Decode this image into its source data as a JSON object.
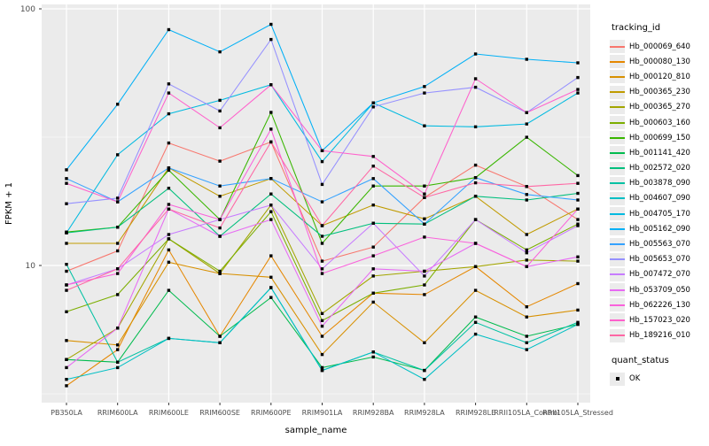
{
  "figure": {
    "background": "#FFFFFF",
    "panel_background": "#EBEBEB",
    "grid_color": "#FFFFFF",
    "axis_text_color": "#4D4D4D",
    "axis_title_color": "#000000",
    "marker_color": "#000000"
  },
  "axes": {
    "x_title": "sample_name",
    "y_title": "FPKM + 1",
    "y_ticks": [
      {
        "label": "100",
        "value": 100
      },
      {
        "label": "10",
        "value": 10
      }
    ]
  },
  "legend": {
    "tracking_title": "tracking_id",
    "quant_title": "quant_status",
    "quant_items": [
      {
        "label": "OK"
      }
    ]
  },
  "chart_data": {
    "type": "line",
    "title": "",
    "xlabel": "sample_name",
    "ylabel": "FPKM + 1",
    "y_scale": "log10",
    "ylim": [
      2.9,
      104
    ],
    "y_major_gridlines": [
      10,
      100
    ],
    "y_minor_gridlines": [
      3.162,
      31.62
    ],
    "grid": true,
    "legend_position": "right",
    "marker": "black-square",
    "categories": [
      "PB350LA",
      "RRIM600LA",
      "RRIM600LE",
      "RRIM600SE",
      "RRIM600PE",
      "RRIM901LA",
      "RRIM928BA",
      "RRIM928LA",
      "RRIM928LE",
      "RRII105LA_Control",
      "RRII105LA_Stressed"
    ],
    "series": [
      {
        "name": "Hb_000069_640",
        "color": "#F8766D",
        "values": [
          9.5,
          11.4,
          30.0,
          25.5,
          30.3,
          10.4,
          11.8,
          18.4,
          24.6,
          20.3,
          15.1
        ]
      },
      {
        "name": "Hb_000080_130",
        "color": "#E58700",
        "values": [
          3.4,
          4.7,
          11.5,
          5.3,
          10.9,
          5.3,
          7.8,
          7.7,
          9.9,
          6.9,
          8.5
        ]
      },
      {
        "name": "Hb_000120_810",
        "color": "#D89000",
        "values": [
          5.1,
          4.9,
          10.3,
          9.3,
          9.0,
          4.5,
          7.2,
          5.0,
          8.0,
          6.3,
          6.7
        ]
      },
      {
        "name": "Hb_000365_230",
        "color": "#C09B00",
        "values": [
          12.2,
          12.2,
          24.0,
          18.6,
          21.8,
          14.3,
          17.2,
          15.2,
          18.6,
          13.2,
          16.6
        ]
      },
      {
        "name": "Hb_000365_270",
        "color": "#A3A500",
        "values": [
          4.3,
          5.7,
          12.7,
          9.3,
          17.2,
          6.5,
          9.1,
          9.5,
          9.9,
          10.5,
          10.4
        ]
      },
      {
        "name": "Hb_000603_160",
        "color": "#7CAE00",
        "values": [
          6.6,
          7.7,
          12.7,
          9.5,
          16.2,
          6.1,
          7.8,
          8.4,
          15.1,
          11.5,
          14.5
        ]
      },
      {
        "name": "Hb_000699_150",
        "color": "#39B600",
        "values": [
          13.5,
          14.1,
          23.5,
          15.1,
          39.5,
          12.2,
          20.4,
          20.4,
          22.0,
          31.6,
          22.4
        ]
      },
      {
        "name": "Hb_001141_420",
        "color": "#00BB4E",
        "values": [
          4.3,
          4.2,
          8.0,
          5.3,
          7.5,
          4.0,
          4.4,
          3.9,
          6.3,
          5.3,
          5.9
        ]
      },
      {
        "name": "Hb_002572_020",
        "color": "#00BF7D",
        "values": [
          13.4,
          14.1,
          20.0,
          13.0,
          19.0,
          13.0,
          14.6,
          14.5,
          18.6,
          18.0,
          19.1
        ]
      },
      {
        "name": "Hb_003878_090",
        "color": "#00C1A3",
        "values": [
          10.1,
          4.2,
          5.2,
          5.0,
          8.2,
          3.9,
          4.6,
          3.9,
          6.0,
          5.0,
          6.0
        ]
      },
      {
        "name": "Hb_004607_090",
        "color": "#00BFC4",
        "values": [
          3.6,
          4.0,
          5.2,
          5.0,
          8.2,
          3.9,
          4.6,
          3.6,
          5.4,
          4.7,
          5.9
        ]
      },
      {
        "name": "Hb_004705_170",
        "color": "#00BAE0",
        "values": [
          13.4,
          27.0,
          39.0,
          44.0,
          50.6,
          25.4,
          43.0,
          35.0,
          34.7,
          35.6,
          47.0
        ]
      },
      {
        "name": "Hb_005162_090",
        "color": "#00B0F6",
        "values": [
          23.6,
          42.5,
          83.0,
          68.0,
          87.0,
          28.0,
          43.0,
          49.8,
          66.7,
          63.6,
          61.6
        ]
      },
      {
        "name": "Hb_005563_070",
        "color": "#35A2FF",
        "values": [
          21.8,
          17.7,
          24.0,
          20.4,
          21.8,
          17.7,
          21.8,
          14.5,
          22.0,
          18.9,
          18.0
        ]
      },
      {
        "name": "Hb_005653_070",
        "color": "#9590FF",
        "values": [
          17.4,
          18.3,
          51.0,
          40.0,
          76.0,
          20.7,
          41.5,
          47.0,
          49.5,
          39.4,
          54.0
        ]
      },
      {
        "name": "Hb_007472_070",
        "color": "#C77CFF",
        "values": [
          8.4,
          9.7,
          13.2,
          15.1,
          17.2,
          9.7,
          14.6,
          9.1,
          15.1,
          11.2,
          14.3
        ]
      },
      {
        "name": "Hb_053709_050",
        "color": "#E76BF3",
        "values": [
          4.0,
          5.7,
          16.6,
          13.0,
          15.1,
          5.8,
          9.7,
          9.5,
          12.2,
          9.9,
          10.8
        ]
      },
      {
        "name": "Hb_062226_130",
        "color": "#FA62DB",
        "values": [
          8.4,
          9.3,
          17.3,
          15.1,
          34.0,
          9.3,
          10.9,
          12.9,
          12.2,
          9.9,
          16.6
        ]
      },
      {
        "name": "Hb_157023_020",
        "color": "#FF61CC",
        "values": [
          20.9,
          17.7,
          47.0,
          34.4,
          50.6,
          28.0,
          26.6,
          19.0,
          53.4,
          39.4,
          48.5
        ]
      },
      {
        "name": "Hb_189216_010",
        "color": "#FF67A4",
        "values": [
          8.0,
          9.7,
          16.6,
          14.0,
          30.3,
          14.3,
          24.4,
          18.4,
          21.0,
          20.3,
          20.9
        ]
      }
    ]
  }
}
